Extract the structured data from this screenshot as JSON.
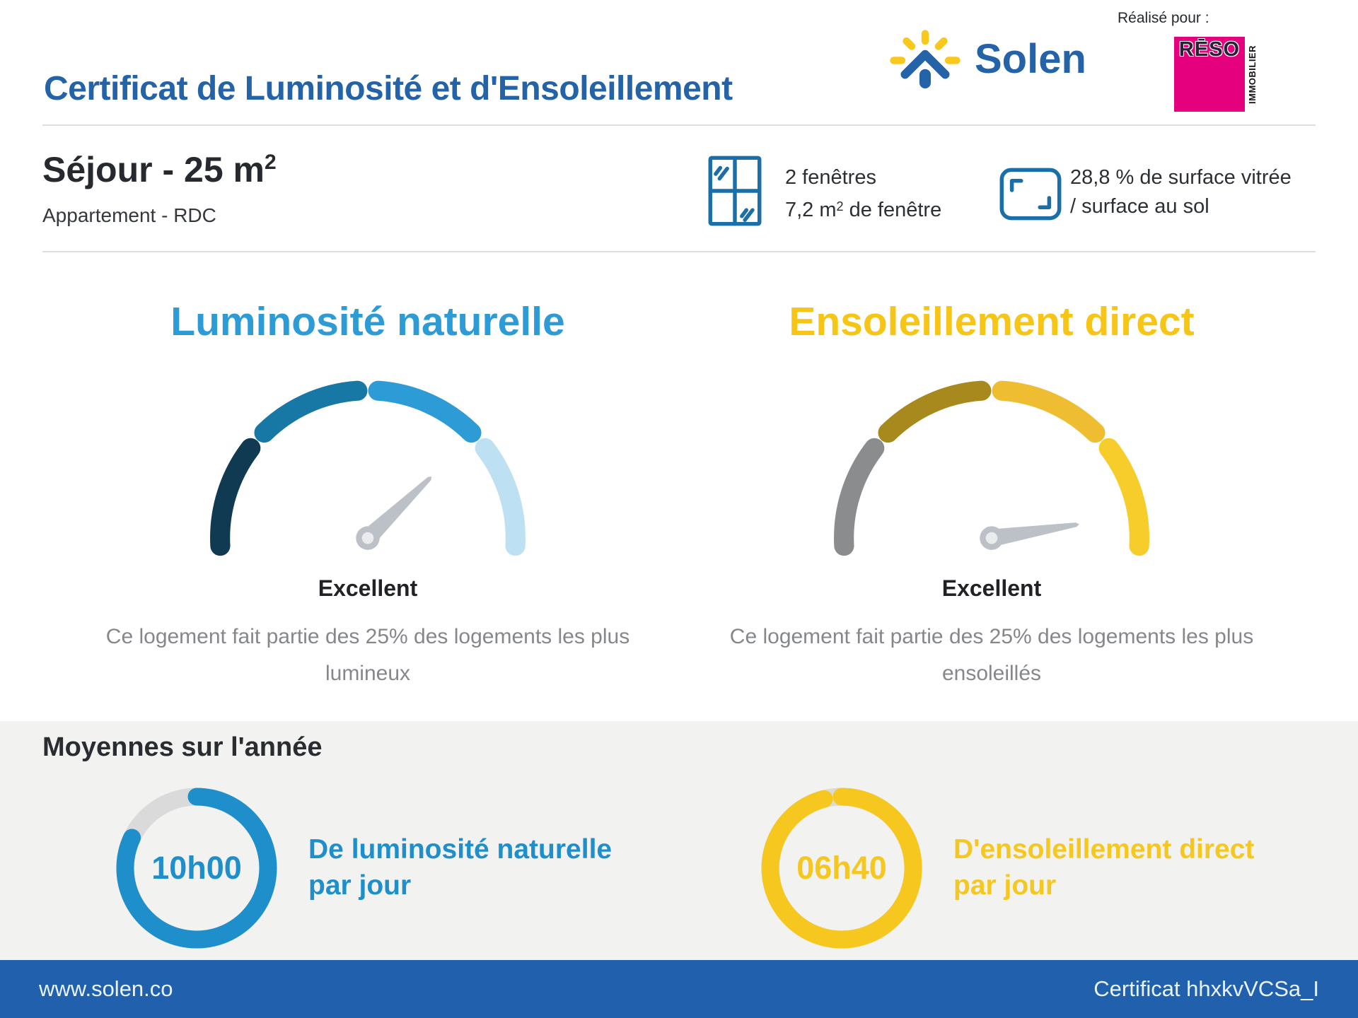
{
  "colors": {
    "accent_blue": "#2563A8",
    "icon_blue": "#1B6FA8",
    "text_dark": "#26292E",
    "text_gray": "#85878A",
    "band_bg": "#F2F2F0",
    "needle": "#BCC1C7"
  },
  "header": {
    "title": "Certificat de Luminosité et d'Ensoleillement",
    "brand_name": "Solen",
    "realise_pour": "Réalisé pour :",
    "partner": {
      "name_top": "RĒSO",
      "name_side": "IMMOBILIER",
      "bg_color": "#E5007D"
    }
  },
  "room": {
    "title_main": "Séjour - 25 m",
    "title_sup": "2",
    "subtitle": "Appartement - RDC",
    "windows": {
      "line1": "2 fenêtres",
      "line2_prefix": "7,2 m",
      "line2_sup": "2",
      "line2_suffix": " de fenêtre"
    },
    "glazing": {
      "line1": "28,8 % de surface vitrée",
      "line2": "/ surface au sol"
    }
  },
  "gauges": [
    {
      "title": "Luminosité naturelle",
      "title_color": "#2D9BD5",
      "rating": "Excellent",
      "desc_line1": "Ce logement fait partie des 25% des logements les plus",
      "desc_line2": "lumineux",
      "segment_colors": [
        "#0F3A52",
        "#1778A6",
        "#2D9BD5",
        "#BEE0F3"
      ],
      "needle_angle_deg": 44
    },
    {
      "title": "Ensoleillement direct",
      "title_color": "#F6C516",
      "rating": "Excellent",
      "desc_line1": "Ce logement fait partie des 25% des logements les plus",
      "desc_line2": "ensoleillés",
      "segment_colors": [
        "#8A8C8E",
        "#A8891D",
        "#EFBD32",
        "#F7CD2B"
      ],
      "needle_angle_deg": 9
    }
  ],
  "averages": {
    "heading": "Moyennes sur l'année",
    "items": [
      {
        "value": "10h00",
        "label_line1": "De luminosité naturelle",
        "label_line2": "par jour",
        "color": "#1F8FCC",
        "fill_percent": 82
      },
      {
        "value": "06h40",
        "label_line1": "D'ensoleillement direct",
        "label_line2": "par jour",
        "color": "#F5C71F",
        "fill_percent": 96
      }
    ]
  },
  "footer": {
    "website": "www.solen.co",
    "certificate": "Certificat hhxkvVCSa_I",
    "bg_color": "#2160AD"
  },
  "chart_data": [
    {
      "type": "gauge",
      "title": "Luminosité naturelle",
      "value_label": "Excellent",
      "note": "Ce logement fait partie des 25% des logements les plus lumineux",
      "segments": 4,
      "needle_angle_deg": 44
    },
    {
      "type": "gauge",
      "title": "Ensoleillement direct",
      "value_label": "Excellent",
      "note": "Ce logement fait partie des 25% des logements les plus ensoleillés",
      "segments": 4,
      "needle_angle_deg": 9
    },
    {
      "type": "donut",
      "title": "De luminosité naturelle par jour",
      "value": "10h00",
      "fill_percent": 82
    },
    {
      "type": "donut",
      "title": "D'ensoleillement direct par jour",
      "value": "06h40",
      "fill_percent": 96
    }
  ]
}
